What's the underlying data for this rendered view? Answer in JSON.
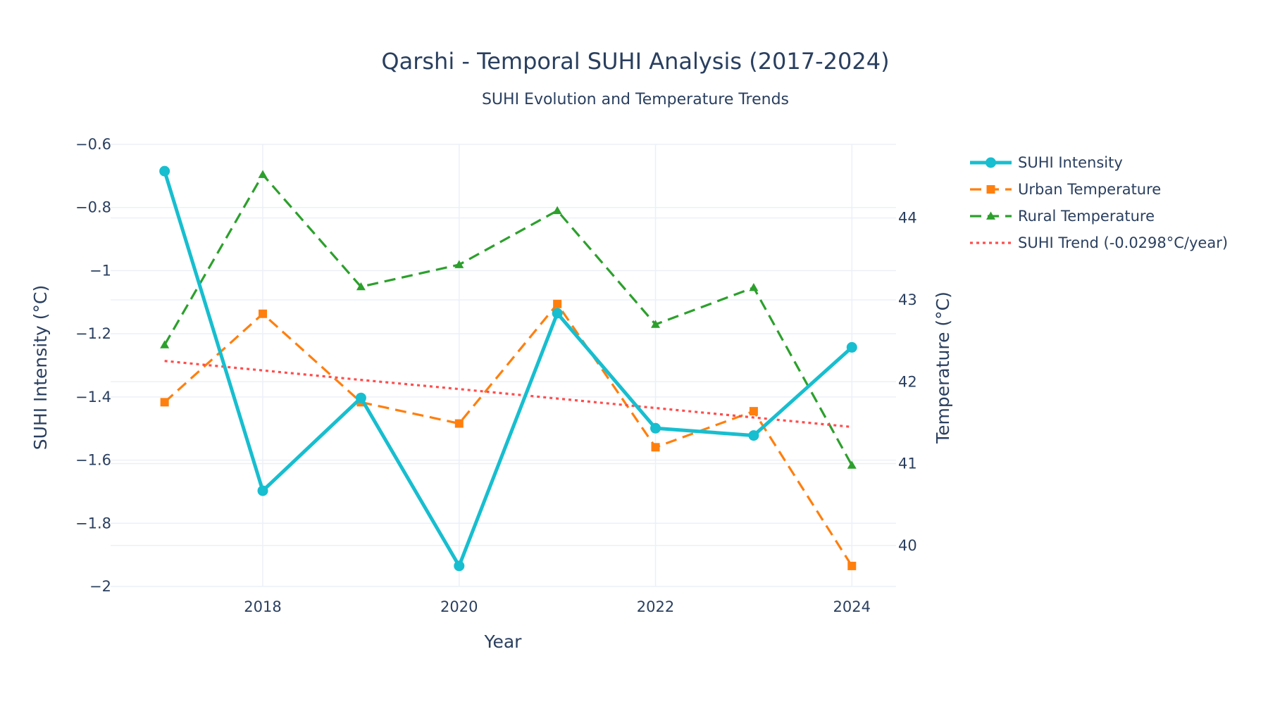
{
  "chart_data": {
    "type": "line",
    "title": "Qarshi - Temporal SUHI Analysis (2017-2024)",
    "subtitle": "SUHI Evolution and Temperature Trends",
    "xlabel": "Year",
    "ylabel_left": "SUHI Intensity (°C)",
    "ylabel_right": "Temperature (°C)",
    "x": [
      2017,
      2018,
      2019,
      2020,
      2021,
      2022,
      2023,
      2024
    ],
    "x_ticks": [
      2018,
      2020,
      2022,
      2024
    ],
    "x_range": [
      2016.45,
      2024.45
    ],
    "y_left_range": [
      -2.0,
      -0.6
    ],
    "y_left_ticks": [
      -2,
      -1.8,
      -1.6,
      -1.4,
      -1.2,
      -1,
      -0.8,
      -0.6
    ],
    "y_left_tick_labels": [
      "−2",
      "−1.8",
      "−1.6",
      "−1.4",
      "−1.2",
      "−1",
      "−0.8",
      "−0.6"
    ],
    "y_right_range": [
      39.5,
      44.9
    ],
    "y_right_ticks": [
      40,
      41,
      42,
      43,
      44
    ],
    "grid": true,
    "legend_position": "right",
    "series": [
      {
        "name": "SUHI Intensity",
        "axis": "left",
        "color": "#17becf",
        "style": "solid",
        "marker": "circle",
        "values": [
          -0.685,
          -1.697,
          -1.403,
          -1.935,
          -1.135,
          -1.499,
          -1.522,
          -1.243
        ]
      },
      {
        "name": "Urban Temperature",
        "axis": "right",
        "color": "#ff7f0e",
        "style": "dash",
        "marker": "square",
        "values": [
          41.75,
          42.83,
          41.75,
          41.49,
          42.95,
          41.2,
          41.64,
          39.75
        ]
      },
      {
        "name": "Rural Temperature",
        "axis": "right",
        "color": "#2ca02c",
        "style": "dash",
        "marker": "triangle",
        "values": [
          42.45,
          44.53,
          43.16,
          43.43,
          44.09,
          42.7,
          43.15,
          40.98
        ]
      },
      {
        "name": "SUHI Trend (-0.0298°C/year)",
        "axis": "left",
        "color": "#ff4d4d",
        "style": "dot",
        "marker": "none",
        "values": [
          -1.286,
          -1.316,
          -1.346,
          -1.375,
          -1.405,
          -1.435,
          -1.465,
          -1.495
        ]
      }
    ]
  }
}
